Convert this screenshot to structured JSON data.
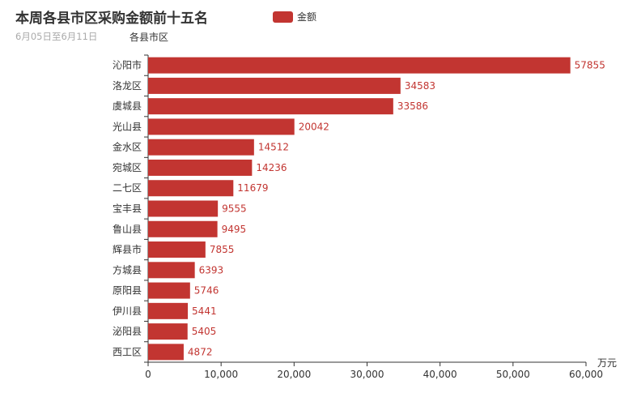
{
  "chart_data": {
    "type": "bar",
    "orientation": "horizontal",
    "title": "本周各县市区采购金额前十五名",
    "subtitle": "6月05日至6月11日",
    "ylabel": "各县市区",
    "xlabel": "万元",
    "legend": [
      "金额"
    ],
    "legend_position": "top-center",
    "color": "#c23531",
    "categories": [
      "沁阳市",
      "洛龙区",
      "虞城县",
      "光山县",
      "金水区",
      "宛城区",
      "二七区",
      "宝丰县",
      "鲁山县",
      "辉县市",
      "方城县",
      "原阳县",
      "伊川县",
      "泌阳县",
      "西工区"
    ],
    "values": [
      57855,
      34583,
      33586,
      20042,
      14512,
      14236,
      11679,
      9555,
      9495,
      7855,
      6393,
      5746,
      5441,
      5405,
      4872
    ],
    "xlim": [
      0,
      60000
    ],
    "xticks": [
      "0",
      "10,000",
      "20,000",
      "30,000",
      "40,000",
      "50,000",
      "60,000"
    ],
    "grid": false
  }
}
